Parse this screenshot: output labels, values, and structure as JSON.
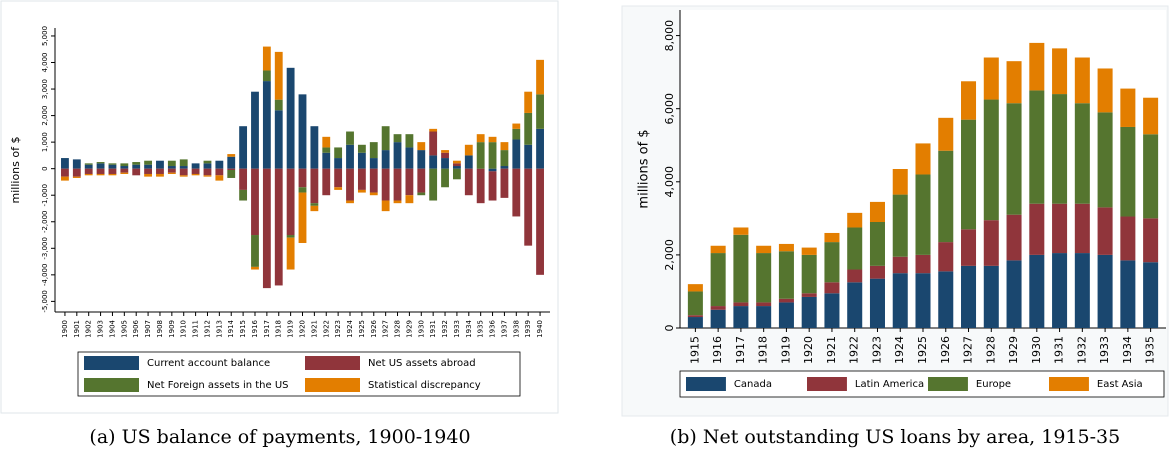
{
  "chart_data": [
    {
      "type": "bar",
      "stacked": true,
      "title": "",
      "caption": "(a) US balance of payments, 1900-1940",
      "ylabel": "millions of $",
      "categories": [
        "1900",
        "1901",
        "1902",
        "1903",
        "1904",
        "1905",
        "1906",
        "1907",
        "1908",
        "1909",
        "1910",
        "1911",
        "1912",
        "1913",
        "1914",
        "1915",
        "1916",
        "1917",
        "1918",
        "1919",
        "1920",
        "1921",
        "1922",
        "1923",
        "1924",
        "1925",
        "1926",
        "1927",
        "1928",
        "1929",
        "1930",
        "1931",
        "1932",
        "1933",
        "1934",
        "1935",
        "1936",
        "1937",
        "1938",
        "1939",
        "1940"
      ],
      "series": [
        {
          "name": "Current account balance",
          "color": "#1a476f",
          "values": [
            400,
            350,
            150,
            200,
            150,
            100,
            150,
            150,
            300,
            100,
            100,
            200,
            200,
            300,
            450,
            1600,
            2900,
            3300,
            2200,
            3800,
            2800,
            1600,
            600,
            400,
            900,
            600,
            400,
            700,
            1000,
            800,
            700,
            500,
            400,
            100,
            500,
            0,
            -100,
            100,
            1100,
            900,
            1500
          ]
        },
        {
          "name": "Net US assets abroad",
          "color": "#90353b",
          "values": [
            -300,
            -300,
            -200,
            -200,
            -200,
            -150,
            -250,
            -200,
            -200,
            -150,
            -250,
            -200,
            -250,
            -250,
            -50,
            -800,
            -2500,
            -4500,
            -4400,
            -2500,
            -700,
            -1300,
            -1000,
            -700,
            -1200,
            -800,
            -900,
            -1200,
            -1200,
            -1000,
            -900,
            900,
            200,
            100,
            -1000,
            -1300,
            -1100,
            -1100,
            -1800,
            -2900,
            -4000
          ]
        },
        {
          "name": "Net Foreign assets in the US",
          "color": "#55752f",
          "values": [
            0,
            0,
            50,
            50,
            50,
            100,
            100,
            150,
            0,
            200,
            250,
            0,
            100,
            0,
            -300,
            -400,
            -1200,
            400,
            400,
            -100,
            -200,
            -100,
            200,
            400,
            500,
            300,
            600,
            900,
            300,
            500,
            -100,
            -1200,
            -700,
            -400,
            0,
            1000,
            1000,
            600,
            400,
            1200,
            1300
          ]
        },
        {
          "name": "Statistical discrepancy",
          "color": "#e37e00",
          "values": [
            -150,
            -50,
            -50,
            -50,
            -50,
            -50,
            0,
            -100,
            -100,
            -50,
            -50,
            -50,
            -50,
            -200,
            100,
            0,
            -100,
            900,
            1800,
            -1200,
            -1900,
            -200,
            400,
            -100,
            -100,
            -100,
            -100,
            -400,
            -100,
            -300,
            300,
            100,
            100,
            100,
            400,
            300,
            200,
            300,
            200,
            800,
            1300
          ]
        }
      ],
      "ylim": [
        -5400,
        5300
      ],
      "yticks": [
        {
          "value": -5000,
          "label": "-5,000"
        },
        {
          "value": -4000,
          "label": "-4,000"
        },
        {
          "value": -3000,
          "label": "-3,000"
        },
        {
          "value": -2000,
          "label": "-2,000"
        },
        {
          "value": -1000,
          "label": "-1,000"
        },
        0,
        {
          "value": 1000,
          "label": "1,000"
        },
        {
          "value": 2000,
          "label": "2,000"
        },
        {
          "value": 3000,
          "label": "3,000"
        },
        {
          "value": 4000,
          "label": "4,000"
        },
        {
          "value": 5000,
          "label": "5,000"
        }
      ]
    },
    {
      "type": "bar",
      "stacked": true,
      "title": "",
      "caption": "(b) Net outstanding US loans by area, 1915-35",
      "ylabel": "millions of $",
      "categories": [
        "1915",
        "1916",
        "1917",
        "1918",
        "1919",
        "1920",
        "1921",
        "1922",
        "1923",
        "1924",
        "1925",
        "1926",
        "1927",
        "1928",
        "1929",
        "1930",
        "1931",
        "1932",
        "1933",
        "1934",
        "1935"
      ],
      "series": [
        {
          "name": "Canada",
          "color": "#1a476f",
          "values": [
            300,
            500,
            600,
            600,
            700,
            850,
            950,
            1250,
            1350,
            1500,
            1500,
            1550,
            1700,
            1700,
            1850,
            2000,
            2050,
            2050,
            2000,
            1850,
            1800
          ]
        },
        {
          "name": "Latin America",
          "color": "#90353b",
          "values": [
            50,
            100,
            100,
            100,
            100,
            100,
            300,
            350,
            350,
            450,
            500,
            800,
            1000,
            1250,
            1250,
            1400,
            1350,
            1350,
            1300,
            1200,
            1200
          ]
        },
        {
          "name": "Europe",
          "color": "#55752f",
          "values": [
            650,
            1450,
            1850,
            1350,
            1300,
            1050,
            1100,
            1150,
            1200,
            1700,
            2200,
            2500,
            3000,
            3300,
            3050,
            3100,
            3000,
            2750,
            2600,
            2450,
            2300
          ]
        },
        {
          "name": "East Asia",
          "color": "#e37e00",
          "values": [
            200,
            200,
            200,
            200,
            200,
            200,
            250,
            400,
            550,
            700,
            850,
            900,
            1050,
            1150,
            1150,
            1300,
            1250,
            1250,
            1200,
            1050,
            1000
          ]
        }
      ],
      "ylim": [
        0,
        8700
      ],
      "yticks": [
        0,
        {
          "value": 2000,
          "label": "2,000"
        },
        {
          "value": 4000,
          "label": "4,000"
        },
        {
          "value": 6000,
          "label": "6,000"
        },
        {
          "value": 8000,
          "label": "8,000"
        }
      ]
    }
  ]
}
